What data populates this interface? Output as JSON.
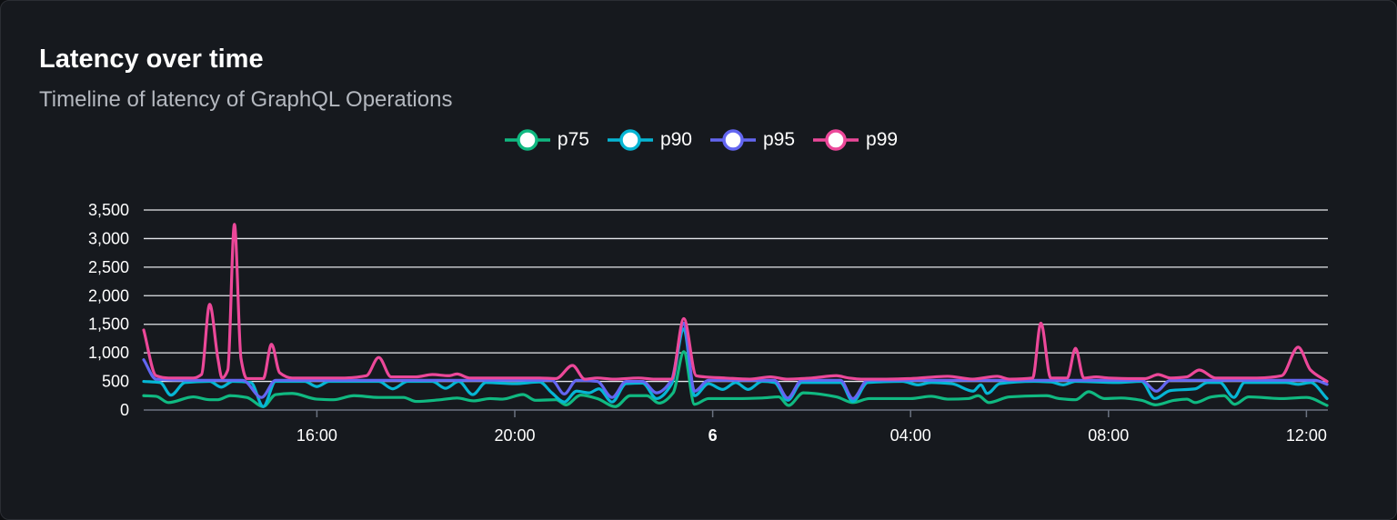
{
  "card": {
    "title": "Latency over time",
    "subtitle": "Timeline of latency of GraphQL Operations"
  },
  "chart_data": {
    "type": "line",
    "title": "Latency over time",
    "subtitle": "Timeline of latency of GraphQL Operations",
    "legend_position": "top-center",
    "grid": true,
    "ylim": [
      0,
      3500
    ],
    "y_ticks": [
      "0",
      "500",
      "1,000",
      "1,500",
      "2,000",
      "2,500",
      "3,000",
      "3,500"
    ],
    "x_range": [
      "12:30",
      "12:25"
    ],
    "x_ticks": [
      {
        "time": "16:00",
        "label": "16:00",
        "bold": false
      },
      {
        "time": "20:00",
        "label": "20:00",
        "bold": false
      },
      {
        "time": "00:00",
        "label": "6",
        "bold": true
      },
      {
        "time": "04:00",
        "label": "04:00",
        "bold": false
      },
      {
        "time": "08:00",
        "label": "08:00",
        "bold": false
      },
      {
        "time": "12:00",
        "label": "12:00",
        "bold": false
      }
    ],
    "series": [
      {
        "name": "p75",
        "color": "#10b981",
        "points": [
          [
            "12:30",
            250
          ],
          [
            "12:45",
            240
          ],
          [
            "13:00",
            130
          ],
          [
            "13:30",
            230
          ],
          [
            "13:50",
            180
          ],
          [
            "14:00",
            180
          ],
          [
            "14:15",
            250
          ],
          [
            "14:35",
            220
          ],
          [
            "14:55",
            60
          ],
          [
            "15:10",
            270
          ],
          [
            "15:30",
            290
          ],
          [
            "16:00",
            190
          ],
          [
            "16:20",
            180
          ],
          [
            "16:45",
            250
          ],
          [
            "17:15",
            220
          ],
          [
            "17:45",
            220
          ],
          [
            "18:00",
            150
          ],
          [
            "18:30",
            180
          ],
          [
            "18:50",
            210
          ],
          [
            "19:10",
            160
          ],
          [
            "19:30",
            200
          ],
          [
            "19:45",
            190
          ],
          [
            "20:10",
            270
          ],
          [
            "20:25",
            170
          ],
          [
            "20:50",
            180
          ],
          [
            "21:02",
            90
          ],
          [
            "21:20",
            260
          ],
          [
            "21:40",
            200
          ],
          [
            "22:02",
            60
          ],
          [
            "22:20",
            250
          ],
          [
            "22:40",
            250
          ],
          [
            "22:55",
            120
          ],
          [
            "23:12",
            300
          ],
          [
            "23:25",
            1020
          ],
          [
            "23:38",
            100
          ],
          [
            "23:55",
            200
          ],
          [
            "00:30",
            200
          ],
          [
            "01:00",
            210
          ],
          [
            "01:20",
            230
          ],
          [
            "01:32",
            80
          ],
          [
            "01:50",
            300
          ],
          [
            "02:30",
            230
          ],
          [
            "02:50",
            130
          ],
          [
            "03:10",
            200
          ],
          [
            "03:40",
            200
          ],
          [
            "04:00",
            200
          ],
          [
            "04:25",
            240
          ],
          [
            "04:45",
            190
          ],
          [
            "05:10",
            200
          ],
          [
            "05:22",
            250
          ],
          [
            "05:35",
            130
          ],
          [
            "06:00",
            230
          ],
          [
            "06:45",
            250
          ],
          [
            "07:00",
            200
          ],
          [
            "07:20",
            180
          ],
          [
            "07:36",
            320
          ],
          [
            "07:55",
            200
          ],
          [
            "08:15",
            210
          ],
          [
            "08:40",
            170
          ],
          [
            "08:57",
            90
          ],
          [
            "09:20",
            170
          ],
          [
            "09:35",
            190
          ],
          [
            "09:45",
            130
          ],
          [
            "10:05",
            230
          ],
          [
            "10:20",
            250
          ],
          [
            "10:33",
            100
          ],
          [
            "10:50",
            230
          ],
          [
            "11:30",
            200
          ],
          [
            "12:00",
            220
          ],
          [
            "12:25",
            80
          ]
        ]
      },
      {
        "name": "p90",
        "color": "#06b6d4",
        "points": [
          [
            "12:30",
            500
          ],
          [
            "12:50",
            480
          ],
          [
            "13:03",
            260
          ],
          [
            "13:20",
            480
          ],
          [
            "13:50",
            500
          ],
          [
            "14:04",
            400
          ],
          [
            "14:18",
            500
          ],
          [
            "14:40",
            480
          ],
          [
            "14:55",
            60
          ],
          [
            "15:10",
            500
          ],
          [
            "15:45",
            500
          ],
          [
            "16:00",
            410
          ],
          [
            "16:15",
            500
          ],
          [
            "17:15",
            500
          ],
          [
            "17:32",
            370
          ],
          [
            "17:50",
            500
          ],
          [
            "18:20",
            500
          ],
          [
            "18:36",
            380
          ],
          [
            "18:52",
            500
          ],
          [
            "19:09",
            270
          ],
          [
            "19:25",
            480
          ],
          [
            "20:00",
            460
          ],
          [
            "20:30",
            490
          ],
          [
            "20:45",
            300
          ],
          [
            "21:00",
            140
          ],
          [
            "21:15",
            330
          ],
          [
            "21:30",
            300
          ],
          [
            "21:42",
            370
          ],
          [
            "21:58",
            140
          ],
          [
            "22:15",
            460
          ],
          [
            "22:35",
            470
          ],
          [
            "22:52",
            200
          ],
          [
            "23:10",
            450
          ],
          [
            "23:25",
            1420
          ],
          [
            "23:38",
            250
          ],
          [
            "23:55",
            460
          ],
          [
            "00:12",
            360
          ],
          [
            "00:28",
            480
          ],
          [
            "00:43",
            360
          ],
          [
            "01:00",
            500
          ],
          [
            "01:15",
            480
          ],
          [
            "01:31",
            170
          ],
          [
            "01:48",
            480
          ],
          [
            "02:35",
            480
          ],
          [
            "02:50",
            150
          ],
          [
            "03:08",
            480
          ],
          [
            "03:50",
            500
          ],
          [
            "04:09",
            440
          ],
          [
            "04:25",
            480
          ],
          [
            "04:50",
            460
          ],
          [
            "05:16",
            330
          ],
          [
            "05:25",
            440
          ],
          [
            "05:33",
            290
          ],
          [
            "05:48",
            460
          ],
          [
            "06:30",
            500
          ],
          [
            "06:50",
            490
          ],
          [
            "07:05",
            440
          ],
          [
            "07:20",
            500
          ],
          [
            "08:10",
            480
          ],
          [
            "08:40",
            500
          ],
          [
            "08:56",
            200
          ],
          [
            "09:15",
            340
          ],
          [
            "09:45",
            370
          ],
          [
            "10:00",
            480
          ],
          [
            "10:15",
            480
          ],
          [
            "10:32",
            220
          ],
          [
            "10:45",
            480
          ],
          [
            "11:35",
            480
          ],
          [
            "11:50",
            450
          ],
          [
            "12:05",
            480
          ],
          [
            "12:25",
            200
          ]
        ]
      },
      {
        "name": "p95",
        "color": "#6366f1",
        "points": [
          [
            "12:30",
            880
          ],
          [
            "12:45",
            540
          ],
          [
            "13:30",
            520
          ],
          [
            "14:30",
            520
          ],
          [
            "14:53",
            220
          ],
          [
            "15:10",
            520
          ],
          [
            "20:45",
            520
          ],
          [
            "21:00",
            280
          ],
          [
            "21:15",
            520
          ],
          [
            "21:40",
            500
          ],
          [
            "21:58",
            220
          ],
          [
            "22:15",
            500
          ],
          [
            "22:35",
            500
          ],
          [
            "22:52",
            300
          ],
          [
            "23:10",
            520
          ],
          [
            "23:25",
            1520
          ],
          [
            "23:38",
            330
          ],
          [
            "23:55",
            520
          ],
          [
            "01:15",
            520
          ],
          [
            "01:31",
            210
          ],
          [
            "01:48",
            520
          ],
          [
            "02:35",
            520
          ],
          [
            "02:50",
            200
          ],
          [
            "03:08",
            520
          ],
          [
            "08:40",
            520
          ],
          [
            "08:58",
            330
          ],
          [
            "09:15",
            520
          ],
          [
            "12:10",
            520
          ],
          [
            "12:25",
            450
          ]
        ]
      },
      {
        "name": "p99",
        "color": "#ec4899",
        "points": [
          [
            "12:30",
            1400
          ],
          [
            "12:45",
            600
          ],
          [
            "13:00",
            560
          ],
          [
            "13:30",
            560
          ],
          [
            "13:40",
            620
          ],
          [
            "13:50",
            1850
          ],
          [
            "14:00",
            900
          ],
          [
            "14:05",
            560
          ],
          [
            "14:12",
            700
          ],
          [
            "14:20",
            3250
          ],
          [
            "14:28",
            900
          ],
          [
            "14:35",
            550
          ],
          [
            "14:55",
            550
          ],
          [
            "15:05",
            1150
          ],
          [
            "15:15",
            650
          ],
          [
            "15:30",
            560
          ],
          [
            "16:00",
            560
          ],
          [
            "16:30",
            560
          ],
          [
            "17:00",
            600
          ],
          [
            "17:15",
            920
          ],
          [
            "17:30",
            580
          ],
          [
            "18:00",
            580
          ],
          [
            "18:20",
            620
          ],
          [
            "18:40",
            600
          ],
          [
            "18:50",
            630
          ],
          [
            "19:05",
            560
          ],
          [
            "19:30",
            560
          ],
          [
            "20:00",
            560
          ],
          [
            "20:30",
            560
          ],
          [
            "20:50",
            550
          ],
          [
            "21:10",
            780
          ],
          [
            "21:25",
            540
          ],
          [
            "21:40",
            560
          ],
          [
            "22:00",
            540
          ],
          [
            "22:30",
            560
          ],
          [
            "22:50",
            540
          ],
          [
            "23:10",
            540
          ],
          [
            "23:25",
            1600
          ],
          [
            "23:40",
            600
          ],
          [
            "23:50",
            580
          ],
          [
            "00:15",
            560
          ],
          [
            "00:45",
            540
          ],
          [
            "01:10",
            580
          ],
          [
            "01:30",
            540
          ],
          [
            "02:00",
            560
          ],
          [
            "02:30",
            600
          ],
          [
            "02:45",
            560
          ],
          [
            "03:00",
            540
          ],
          [
            "03:30",
            540
          ],
          [
            "04:00",
            550
          ],
          [
            "04:45",
            590
          ],
          [
            "05:15",
            540
          ],
          [
            "05:45",
            590
          ],
          [
            "06:00",
            540
          ],
          [
            "06:28",
            560
          ],
          [
            "06:38",
            1520
          ],
          [
            "06:50",
            560
          ],
          [
            "07:10",
            560
          ],
          [
            "07:20",
            1080
          ],
          [
            "07:30",
            560
          ],
          [
            "07:45",
            580
          ],
          [
            "08:00",
            560
          ],
          [
            "08:30",
            550
          ],
          [
            "08:45",
            550
          ],
          [
            "09:00",
            620
          ],
          [
            "09:15",
            560
          ],
          [
            "09:35",
            580
          ],
          [
            "09:50",
            700
          ],
          [
            "10:10",
            560
          ],
          [
            "10:30",
            560
          ],
          [
            "11:00",
            560
          ],
          [
            "11:30",
            600
          ],
          [
            "11:50",
            1100
          ],
          [
            "12:05",
            700
          ],
          [
            "12:25",
            500
          ]
        ]
      }
    ]
  }
}
